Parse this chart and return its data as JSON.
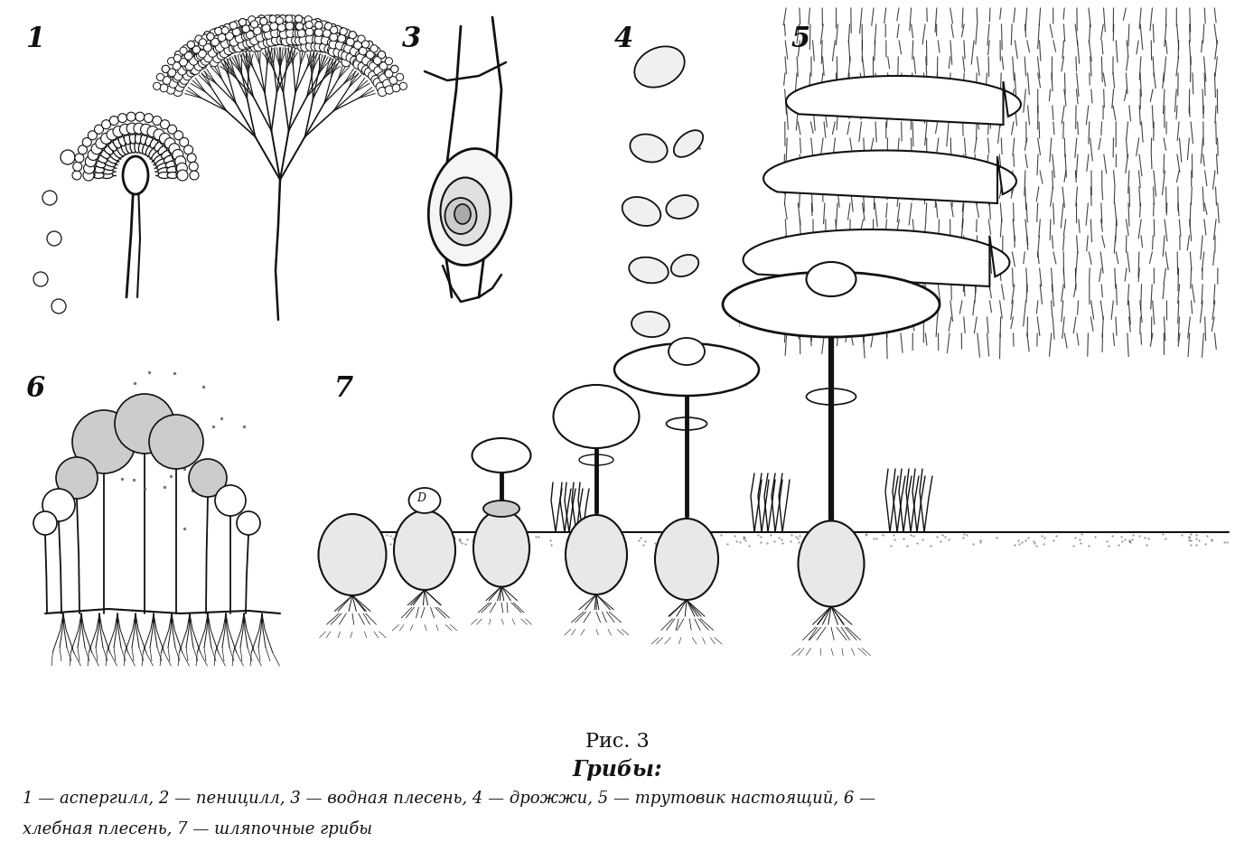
{
  "title": "Рис. 3",
  "subtitle": "Грибы:",
  "caption_line1": "1 — аспергилл, 2 — пеницилл, 3 — водная плесень, 4 — дрожжи, 5 — трутовик настоящий, 6 —",
  "caption_line2": "хлебная плесень, 7 — шляпочные грибы",
  "bg_color": "#ffffff",
  "lc": "#111111",
  "figsize": [
    13.67,
    9.54
  ],
  "dpi": 100
}
